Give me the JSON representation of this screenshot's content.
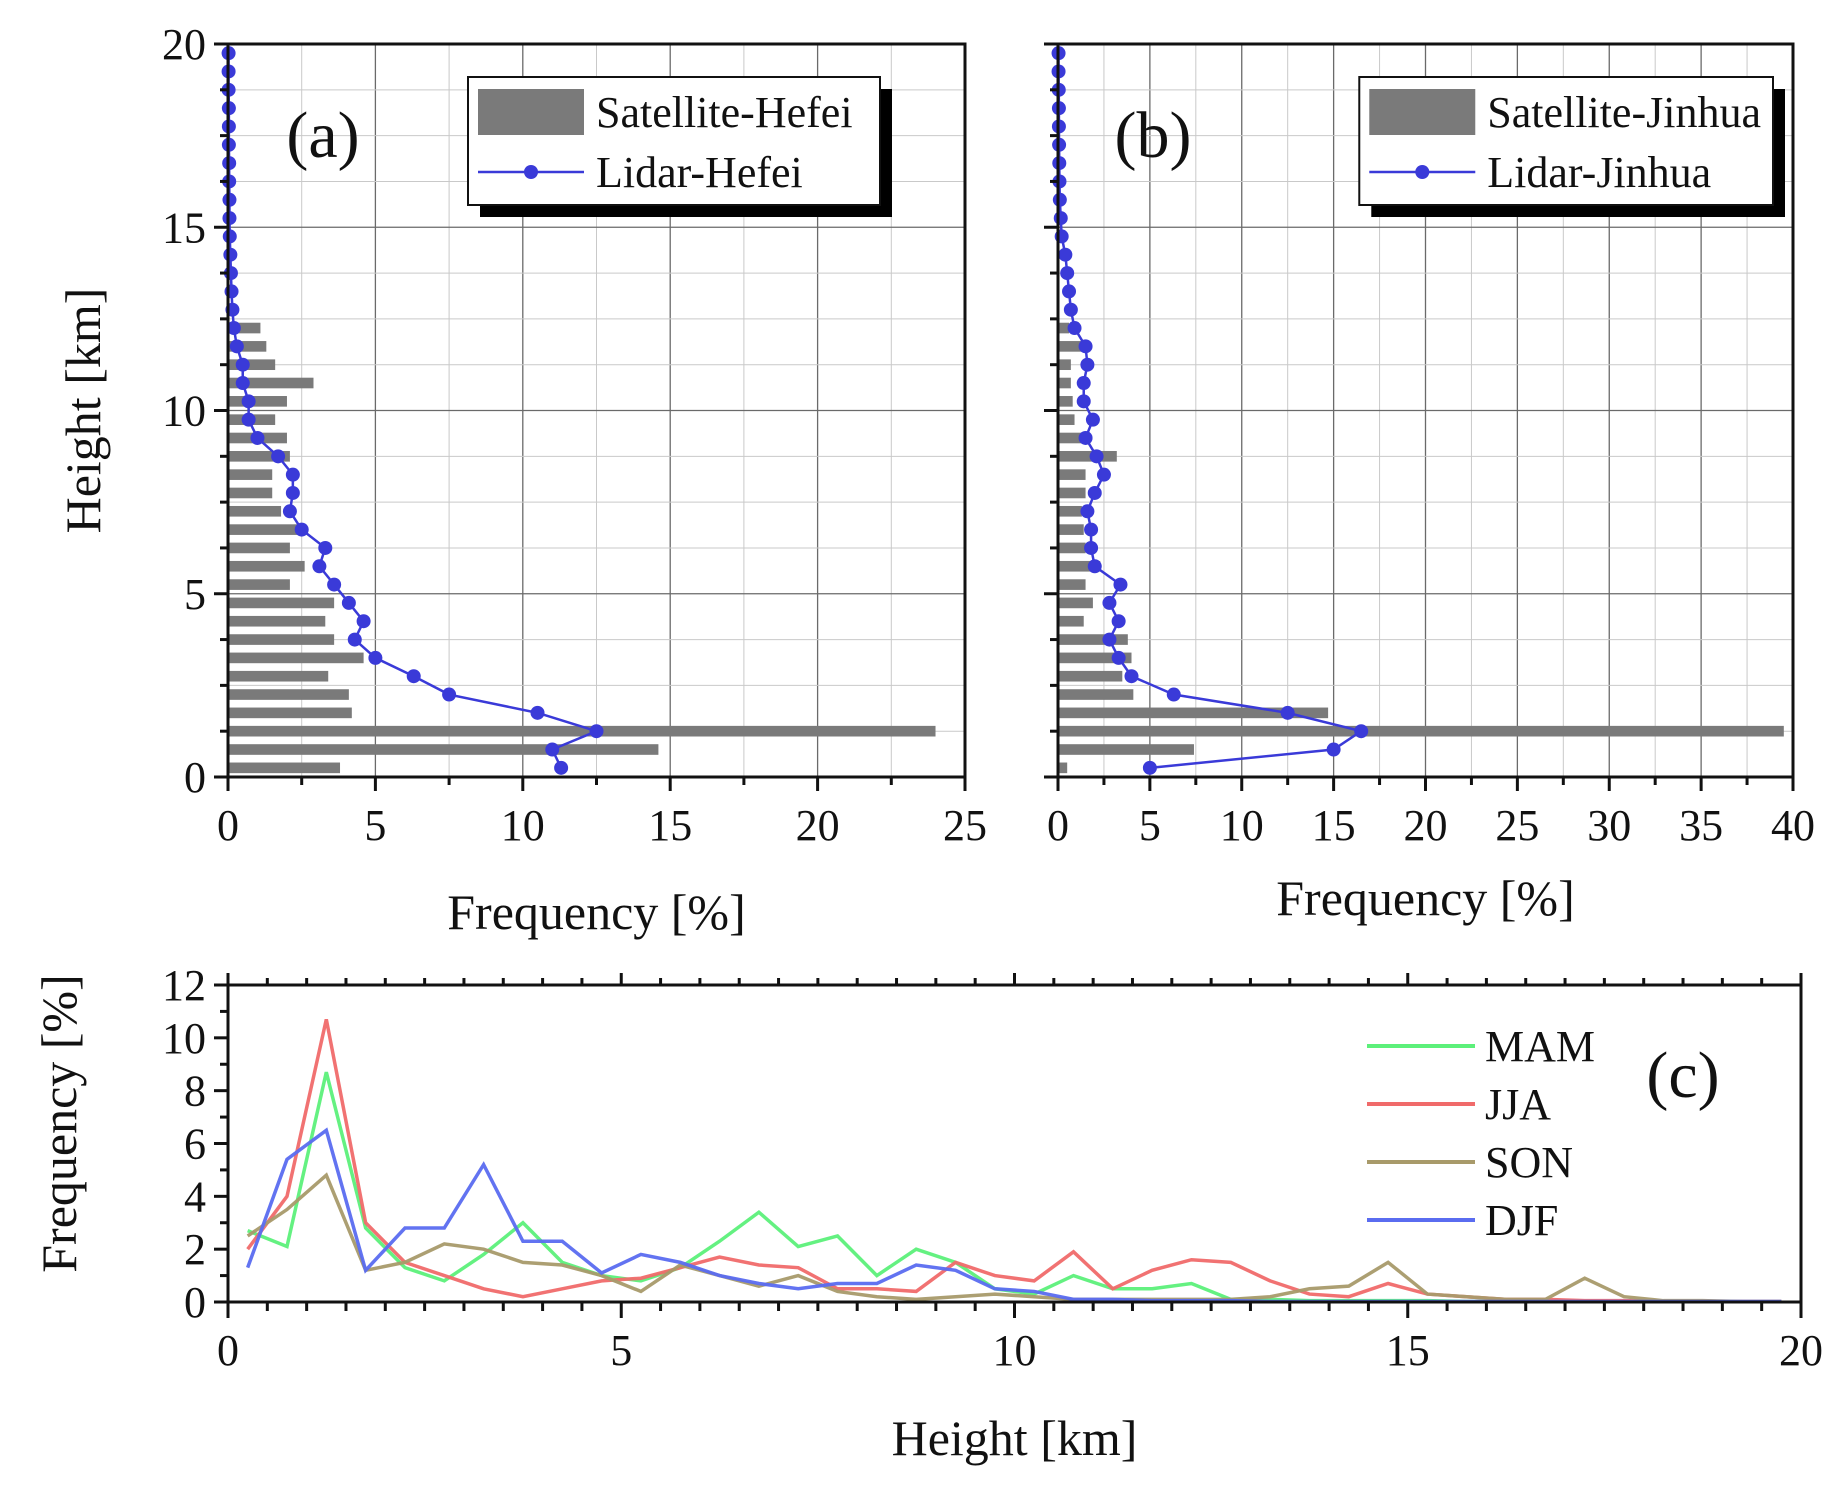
{
  "chart_data": [
    {
      "id": "a",
      "type": "bar",
      "orientation": "horizontal",
      "panel_label": "(a)",
      "xlabel": "Frequency [%]",
      "ylabel": "Height [km]",
      "xlim": [
        0,
        25
      ],
      "ylim": [
        0,
        20
      ],
      "xticks": [
        0,
        5,
        10,
        15,
        20,
        25
      ],
      "yticks": [
        0,
        5,
        10,
        15,
        20
      ],
      "grid": true,
      "legend_position": "top-right",
      "series": [
        {
          "name": "Satellite-Hefei",
          "kind": "bar",
          "color": "#7a7a7a",
          "heights": [
            0.25,
            0.75,
            1.25,
            1.75,
            2.25,
            2.75,
            3.25,
            3.75,
            4.25,
            4.75,
            5.25,
            5.75,
            6.25,
            6.75,
            7.25,
            7.75,
            8.25,
            8.75,
            9.25,
            9.75,
            10.25,
            10.75,
            11.25,
            11.75,
            12.25
          ],
          "values": [
            3.8,
            14.6,
            24.0,
            4.2,
            4.1,
            3.4,
            4.6,
            3.6,
            3.3,
            3.6,
            2.1,
            2.6,
            2.1,
            2.4,
            1.8,
            1.5,
            1.5,
            2.1,
            2.0,
            1.6,
            2.0,
            2.9,
            1.6,
            1.3,
            1.1
          ]
        },
        {
          "name": "Lidar-Hefei",
          "kind": "line",
          "color": "#3a3ad8",
          "heights": [
            0.25,
            0.75,
            1.25,
            1.75,
            2.25,
            2.75,
            3.25,
            3.75,
            4.25,
            4.75,
            5.25,
            5.75,
            6.25,
            6.75,
            7.25,
            7.75,
            8.25,
            8.75,
            9.25,
            9.75,
            10.25,
            10.75,
            11.25,
            11.75,
            12.25,
            12.75,
            13.25,
            13.75,
            14.25,
            14.75,
            15.25,
            15.75,
            16.25,
            16.75,
            17.25,
            17.75,
            18.25,
            18.75,
            19.25,
            19.75
          ],
          "values": [
            11.3,
            11.0,
            12.5,
            10.5,
            7.5,
            6.3,
            5.0,
            4.3,
            4.6,
            4.1,
            3.6,
            3.1,
            3.3,
            2.5,
            2.1,
            2.2,
            2.2,
            1.7,
            1.0,
            0.7,
            0.7,
            0.5,
            0.5,
            0.3,
            0.2,
            0.15,
            0.12,
            0.1,
            0.08,
            0.06,
            0.05,
            0.05,
            0.04,
            0.04,
            0.03,
            0.03,
            0.03,
            0.02,
            0.02,
            0.02
          ]
        }
      ]
    },
    {
      "id": "b",
      "type": "bar",
      "orientation": "horizontal",
      "panel_label": "(b)",
      "xlabel": "Frequency [%]",
      "ylabel": "",
      "xlim": [
        0,
        40
      ],
      "ylim": [
        0,
        20
      ],
      "xticks": [
        0,
        5,
        10,
        15,
        20,
        25,
        30,
        35,
        40
      ],
      "yticks": [
        0,
        5,
        10,
        15,
        20
      ],
      "grid": true,
      "legend_position": "top-right",
      "series": [
        {
          "name": "Satellite-Jinhua",
          "kind": "bar",
          "color": "#7a7a7a",
          "heights": [
            0.25,
            0.75,
            1.25,
            1.75,
            2.25,
            2.75,
            3.25,
            3.75,
            4.25,
            4.75,
            5.25,
            5.75,
            6.25,
            6.75,
            7.25,
            7.75,
            8.25,
            8.75,
            9.25,
            9.75,
            10.25,
            10.75,
            11.25,
            11.75,
            12.25
          ],
          "values": [
            0.5,
            7.4,
            39.5,
            14.7,
            4.1,
            3.5,
            4.0,
            3.8,
            1.4,
            1.9,
            1.5,
            2.3,
            1.5,
            1.4,
            1.3,
            1.5,
            1.5,
            3.2,
            1.5,
            0.9,
            0.8,
            0.7,
            0.7,
            1.3,
            0.6
          ]
        },
        {
          "name": "Lidar-Jinhua",
          "kind": "line",
          "color": "#3a3ad8",
          "heights": [
            0.25,
            0.75,
            1.25,
            1.75,
            2.25,
            2.75,
            3.25,
            3.75,
            4.25,
            4.75,
            5.25,
            5.75,
            6.25,
            6.75,
            7.25,
            7.75,
            8.25,
            8.75,
            9.25,
            9.75,
            10.25,
            10.75,
            11.25,
            11.75,
            12.25,
            12.75,
            13.25,
            13.75,
            14.25,
            14.75,
            15.25,
            15.75,
            16.25,
            16.75,
            17.25,
            17.75,
            18.25,
            18.75,
            19.25,
            19.75
          ],
          "values": [
            5.0,
            15.0,
            16.5,
            12.5,
            6.3,
            4.0,
            3.3,
            2.8,
            3.3,
            2.8,
            3.4,
            2.0,
            1.8,
            1.8,
            1.6,
            2.0,
            2.5,
            2.1,
            1.5,
            1.9,
            1.4,
            1.4,
            1.6,
            1.5,
            0.9,
            0.7,
            0.6,
            0.5,
            0.4,
            0.2,
            0.15,
            0.1,
            0.08,
            0.07,
            0.06,
            0.05,
            0.05,
            0.04,
            0.03,
            0.03
          ]
        }
      ]
    },
    {
      "id": "c",
      "type": "line",
      "panel_label": "(c)",
      "xlabel": "Height [km]",
      "ylabel": "Frequency [%]",
      "xlim": [
        0,
        20
      ],
      "ylim": [
        0,
        12
      ],
      "xticks": [
        0,
        5,
        10,
        15,
        20
      ],
      "yticks": [
        0,
        2,
        4,
        6,
        8,
        10,
        12
      ],
      "grid": false,
      "legend_position": "top-right",
      "x": [
        0.25,
        0.75,
        1.25,
        1.75,
        2.25,
        2.75,
        3.25,
        3.75,
        4.25,
        4.75,
        5.25,
        5.75,
        6.25,
        6.75,
        7.25,
        7.75,
        8.25,
        8.75,
        9.25,
        9.75,
        10.25,
        10.75,
        11.25,
        11.75,
        12.25,
        12.75,
        13.25,
        13.75,
        14.25,
        14.75,
        15.25,
        15.75,
        16.25,
        16.75,
        17.25,
        17.75,
        18.25,
        18.75,
        19.25,
        19.75
      ],
      "series": [
        {
          "name": "MAM",
          "color": "#5cf07a",
          "values": [
            2.7,
            2.1,
            8.7,
            2.8,
            1.3,
            0.8,
            1.8,
            3.0,
            1.5,
            1.0,
            0.8,
            1.3,
            2.3,
            3.4,
            2.1,
            2.5,
            1.0,
            2.0,
            1.5,
            0.5,
            0.3,
            1.0,
            0.5,
            0.5,
            0.7,
            0.1,
            0.1,
            0.05,
            0.05,
            0.05,
            0.05,
            0.02,
            0.02,
            0.02,
            0.02,
            0.01,
            0.01,
            0.01,
            0.01,
            0.01
          ]
        },
        {
          "name": "JJA",
          "color": "#f06a6a",
          "values": [
            2.0,
            4.0,
            10.7,
            3.0,
            1.5,
            1.0,
            0.5,
            0.2,
            0.5,
            0.8,
            0.9,
            1.3,
            1.7,
            1.4,
            1.3,
            0.5,
            0.5,
            0.4,
            1.5,
            1.0,
            0.8,
            1.9,
            0.5,
            1.2,
            1.6,
            1.5,
            0.8,
            0.3,
            0.2,
            0.7,
            0.3,
            0.2,
            0.1,
            0.1,
            0.05,
            0.05,
            0.02,
            0.02,
            0.02,
            0.02
          ]
        },
        {
          "name": "SON",
          "color": "#a89a6a",
          "values": [
            2.5,
            3.5,
            4.8,
            1.2,
            1.5,
            2.2,
            2.0,
            1.5,
            1.4,
            1.0,
            0.4,
            1.4,
            1.0,
            0.6,
            1.0,
            0.4,
            0.2,
            0.1,
            0.2,
            0.3,
            0.2,
            0.1,
            0.1,
            0.1,
            0.1,
            0.1,
            0.2,
            0.5,
            0.6,
            1.5,
            0.3,
            0.2,
            0.1,
            0.1,
            0.9,
            0.2,
            0.05,
            0.05,
            0.02,
            0.02
          ]
        },
        {
          "name": "DJF",
          "color": "#5a6cf0",
          "values": [
            1.3,
            5.4,
            6.5,
            1.2,
            2.8,
            2.8,
            5.2,
            2.3,
            2.3,
            1.1,
            1.8,
            1.5,
            1.0,
            0.7,
            0.5,
            0.7,
            0.7,
            1.4,
            1.2,
            0.5,
            0.4,
            0.1,
            0.1,
            0.05,
            0.05,
            0.05,
            0.02,
            0.02,
            0.02,
            0.02,
            0.02,
            0.02,
            0.02,
            0.02,
            0.02,
            0.02,
            0.02,
            0.02,
            0.02,
            0.02
          ]
        }
      ]
    }
  ]
}
